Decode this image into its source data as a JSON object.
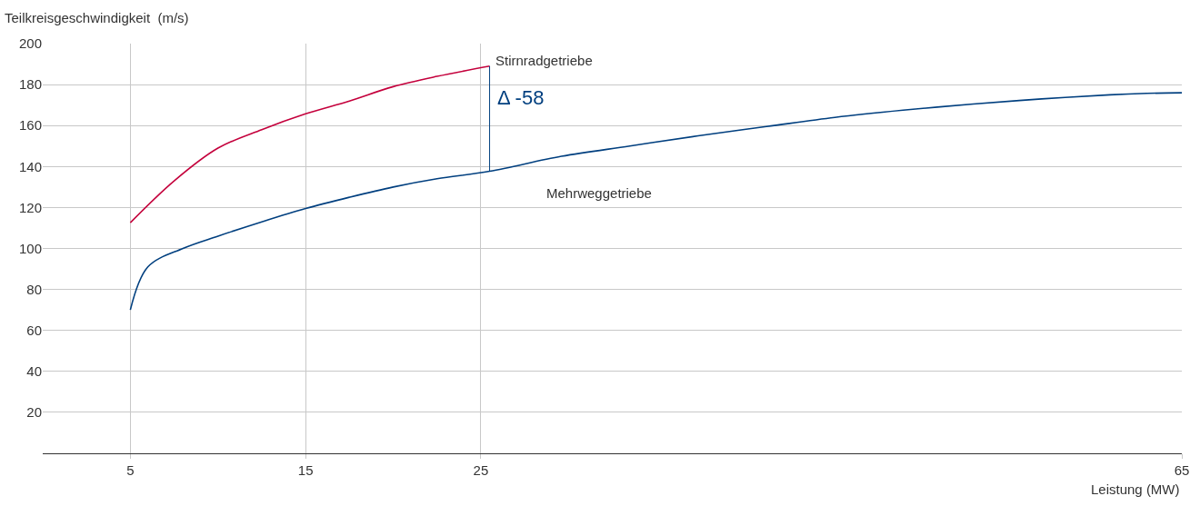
{
  "chart_data": {
    "type": "line",
    "xlabel": "Leistung (MW)",
    "ylabel": "Teilkreisgeschwindigkeit  (m/s)",
    "series": [
      {
        "name": "Stirnradgetriebe",
        "color": "#c4003c",
        "x": [
          5,
          7.5,
          10,
          12.5,
          15,
          17.5,
          20,
          22.5,
          25.5
        ],
        "values": [
          112.6,
          133,
          149,
          158,
          165.7,
          172,
          179,
          184,
          189
        ]
      },
      {
        "name": "Mehrweggetriebe",
        "color": "#003f7f",
        "x": [
          5,
          6,
          8,
          10,
          12.5,
          15,
          17.5,
          20,
          22.5,
          25.5,
          29.6,
          33.5,
          37.4,
          41.3,
          45.2,
          49.1,
          53.1,
          57,
          60.9,
          63,
          65
        ],
        "values": [
          70,
          91,
          100,
          106,
          113,
          119.5,
          125,
          130,
          134,
          137.7,
          145,
          150,
          155,
          159.5,
          164,
          167.5,
          170.5,
          173,
          175,
          175.7,
          176
        ]
      }
    ],
    "annotations": [
      {
        "text": "Δ -58",
        "x": 25.5,
        "y": 189
      }
    ],
    "xlim": [
      0,
      65
    ],
    "xticks": [
      5,
      15,
      25,
      65
    ],
    "ylim": [
      0,
      200
    ],
    "yticks": [
      20,
      40,
      60,
      80,
      100,
      120,
      140,
      160,
      180,
      200
    ],
    "grid": true,
    "legend": false
  }
}
